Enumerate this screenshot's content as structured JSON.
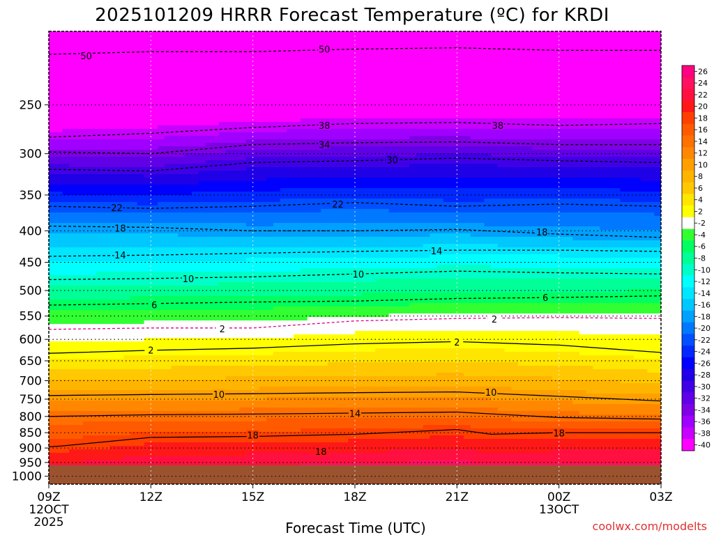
{
  "title": "2025101209 HRRR Forecast Temperature (ºC) for KRDI",
  "credit": "coolwx.com/modelts",
  "chart_data": {
    "type": "heatmap",
    "title": "2025101209 HRRR Forecast Temperature (ºC) for KRDI",
    "xlabel": "Forecast Time (UTC)",
    "ylabel": "",
    "x_ticks": [
      {
        "hour": 0,
        "label": "09Z",
        "sub": [
          "12OCT",
          "2025"
        ]
      },
      {
        "hour": 3,
        "label": "12Z",
        "sub": []
      },
      {
        "hour": 6,
        "label": "15Z",
        "sub": []
      },
      {
        "hour": 9,
        "label": "18Z",
        "sub": []
      },
      {
        "hour": 12,
        "label": "21Z",
        "sub": []
      },
      {
        "hour": 15,
        "label": "00Z",
        "sub": [
          "13OCT"
        ]
      },
      {
        "hour": 18,
        "label": "03Z",
        "sub": []
      }
    ],
    "x_range_hours": [
      0,
      18
    ],
    "y_axis": "pressure (hPa), log scale, inverted",
    "y_ticks": [
      250,
      300,
      350,
      400,
      450,
      500,
      550,
      600,
      650,
      700,
      750,
      800,
      850,
      900,
      950,
      1000
    ],
    "y_range": [
      190,
      1030
    ],
    "grid": true,
    "below_ground_pressure": 960,
    "colorbar": {
      "labels": [
        "26",
        "24",
        "22",
        "20",
        "18",
        "16",
        "14",
        "12",
        "10",
        "8",
        "6",
        "4",
        "2",
        "-2",
        "-4",
        "-6",
        "-8",
        "-10",
        "-12",
        "-14",
        "-16",
        "-18",
        "-20",
        "-22",
        "-24",
        "-26",
        "-28",
        "-30",
        "-32",
        "-34",
        "-36",
        "-38",
        "-40"
      ],
      "colors": [
        "#ff0080",
        "#ff1060",
        "#ff1040",
        "#ff1818",
        "#ff4000",
        "#ff5a00",
        "#ff7000",
        "#ff8800",
        "#ffa000",
        "#ffb400",
        "#ffc800",
        "#ffe600",
        "#ffff00",
        "#ffffff",
        "#32ff32",
        "#00ff60",
        "#00ff96",
        "#00ffc8",
        "#00ffff",
        "#00e6ff",
        "#00c8ff",
        "#00a0ff",
        "#0078ff",
        "#0050ff",
        "#0028ff",
        "#0000ff",
        "#2000e6",
        "#4000e6",
        "#6000e6",
        "#8000e6",
        "#a000ff",
        "#c800ff",
        "#ff00ff"
      ]
    },
    "series": [
      {
        "temp": 18,
        "points": [
          [
            0,
            896
          ],
          [
            0.4,
            893
          ],
          [
            3,
            865
          ],
          [
            6,
            862
          ],
          [
            9,
            855
          ],
          [
            12,
            840
          ],
          [
            13,
            855
          ],
          [
            15,
            850
          ],
          [
            18,
            850
          ]
        ]
      },
      {
        "temp": 14,
        "points": [
          [
            0,
            800
          ],
          [
            3,
            795
          ],
          [
            6,
            793
          ],
          [
            9,
            790
          ],
          [
            12,
            787
          ],
          [
            15,
            803
          ],
          [
            18,
            808
          ]
        ]
      },
      {
        "temp": 10,
        "points": [
          [
            0,
            740
          ],
          [
            3,
            737
          ],
          [
            6,
            735
          ],
          [
            9,
            732
          ],
          [
            12,
            730
          ],
          [
            15,
            742
          ],
          [
            18,
            755
          ]
        ]
      },
      {
        "temp": 2,
        "points": [
          [
            0,
            632
          ],
          [
            3,
            625
          ],
          [
            6,
            620
          ],
          [
            9,
            610
          ],
          [
            12,
            605
          ],
          [
            15,
            613
          ],
          [
            18,
            630
          ]
        ]
      },
      {
        "temp": -2,
        "points": [
          [
            0,
            578
          ],
          [
            3,
            575
          ],
          [
            6,
            575
          ],
          [
            9,
            560
          ],
          [
            12,
            555
          ],
          [
            15,
            553
          ],
          [
            18,
            555
          ]
        ]
      },
      {
        "temp": -6,
        "points": [
          [
            0,
            528
          ],
          [
            3,
            525
          ],
          [
            6,
            522
          ],
          [
            9,
            520
          ],
          [
            12,
            515
          ],
          [
            15,
            513
          ],
          [
            18,
            510
          ]
        ]
      },
      {
        "temp": -10,
        "points": [
          [
            0,
            480
          ],
          [
            3,
            478
          ],
          [
            6,
            475
          ],
          [
            9,
            470
          ],
          [
            12,
            465
          ],
          [
            15,
            468
          ],
          [
            18,
            470
          ]
        ]
      },
      {
        "temp": -14,
        "points": [
          [
            0,
            440
          ],
          [
            3,
            438
          ],
          [
            6,
            435
          ],
          [
            9,
            432
          ],
          [
            12,
            430
          ],
          [
            15,
            430
          ],
          [
            18,
            432
          ]
        ]
      },
      {
        "temp": -18,
        "points": [
          [
            0,
            393
          ],
          [
            3,
            395
          ],
          [
            6,
            400
          ],
          [
            9,
            400
          ],
          [
            12,
            398
          ],
          [
            15,
            405
          ],
          [
            18,
            410
          ]
        ]
      },
      {
        "temp": -22,
        "points": [
          [
            0,
            365
          ],
          [
            3,
            368
          ],
          [
            6,
            365
          ],
          [
            9,
            360
          ],
          [
            12,
            365
          ],
          [
            15,
            362
          ],
          [
            18,
            365
          ]
        ]
      },
      {
        "temp": -30,
        "points": [
          [
            0,
            318
          ],
          [
            3,
            320
          ],
          [
            6,
            310
          ],
          [
            9,
            308
          ],
          [
            12,
            305
          ],
          [
            15,
            308
          ],
          [
            18,
            310
          ]
        ]
      },
      {
        "temp": -34,
        "points": [
          [
            0,
            298
          ],
          [
            3,
            300
          ],
          [
            6,
            290
          ],
          [
            9,
            288
          ],
          [
            12,
            287
          ],
          [
            15,
            290
          ],
          [
            18,
            290
          ]
        ]
      },
      {
        "temp": -38,
        "points": [
          [
            0,
            282
          ],
          [
            3,
            278
          ],
          [
            6,
            272
          ],
          [
            9,
            268
          ],
          [
            12,
            267
          ],
          [
            15,
            270
          ],
          [
            18,
            268
          ]
        ]
      },
      {
        "temp": -50,
        "points": [
          [
            0,
            207
          ],
          [
            3,
            205
          ],
          [
            6,
            205
          ],
          [
            9,
            203
          ],
          [
            12,
            202
          ],
          [
            15,
            204
          ],
          [
            18,
            204
          ]
        ]
      }
    ],
    "contour_labels": [
      {
        "text": "50",
        "hour": 1.1,
        "p": 208
      },
      {
        "text": "50",
        "hour": 8.1,
        "p": 203
      },
      {
        "text": "38",
        "hour": 8.1,
        "p": 270
      },
      {
        "text": "38",
        "hour": 13.2,
        "p": 270
      },
      {
        "text": "34",
        "hour": 8.1,
        "p": 290
      },
      {
        "text": "30",
        "hour": 10.1,
        "p": 307
      },
      {
        "text": "22",
        "hour": 2.0,
        "p": 367
      },
      {
        "text": "22",
        "hour": 8.5,
        "p": 362
      },
      {
        "text": "18",
        "hour": 2.1,
        "p": 396
      },
      {
        "text": "18",
        "hour": 14.5,
        "p": 402
      },
      {
        "text": "14",
        "hour": 2.1,
        "p": 438
      },
      {
        "text": "14",
        "hour": 11.4,
        "p": 431
      },
      {
        "text": "10",
        "hour": 4.1,
        "p": 478
      },
      {
        "text": "10",
        "hour": 9.1,
        "p": 470
      },
      {
        "text": "6",
        "hour": 3.1,
        "p": 527
      },
      {
        "text": "6",
        "hour": 14.6,
        "p": 513
      },
      {
        "text": "2",
        "hour": 5.1,
        "p": 577
      },
      {
        "text": "2",
        "hour": 13.1,
        "p": 556
      },
      {
        "text": "2",
        "hour": 3.0,
        "p": 624
      },
      {
        "text": "2",
        "hour": 12.0,
        "p": 606
      },
      {
        "text": "10",
        "hour": 5.0,
        "p": 736
      },
      {
        "text": "10",
        "hour": 13.0,
        "p": 731
      },
      {
        "text": "14",
        "hour": 9.0,
        "p": 791
      },
      {
        "text": "18",
        "hour": 6.0,
        "p": 858
      },
      {
        "text": "18",
        "hour": 15.0,
        "p": 851
      },
      {
        "text": "18",
        "hour": 8.0,
        "p": 912
      }
    ]
  }
}
